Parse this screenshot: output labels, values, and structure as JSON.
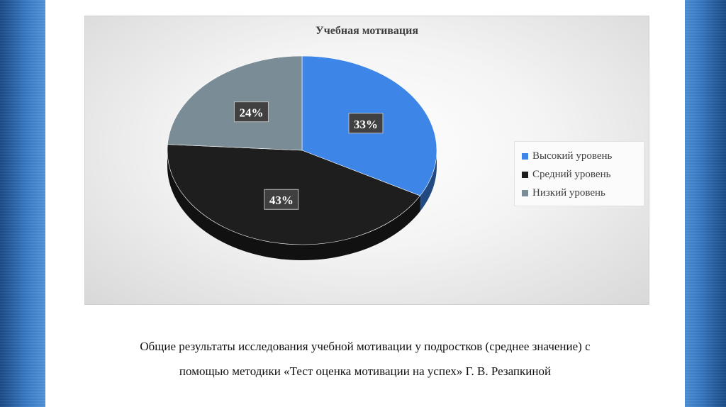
{
  "chart_data": {
    "type": "pie",
    "title": "Учебная мотивация",
    "categories": [
      "Высокий уровень",
      "Средний уровень",
      "Низкий уровень"
    ],
    "values": [
      33,
      43,
      24
    ],
    "data_labels": [
      "33%",
      "43%",
      "24%"
    ],
    "colors": [
      "#3d86e8",
      "#1e1e1e",
      "#7a8c96"
    ],
    "legend_position": "right",
    "style": "3d"
  },
  "caption": {
    "line1": "Общие результаты исследования учебной мотивации у подростков (среднее значение) с",
    "line2": "помощью методики «Тест оценка мотивации на успех» Г. В. Резапкиной"
  }
}
